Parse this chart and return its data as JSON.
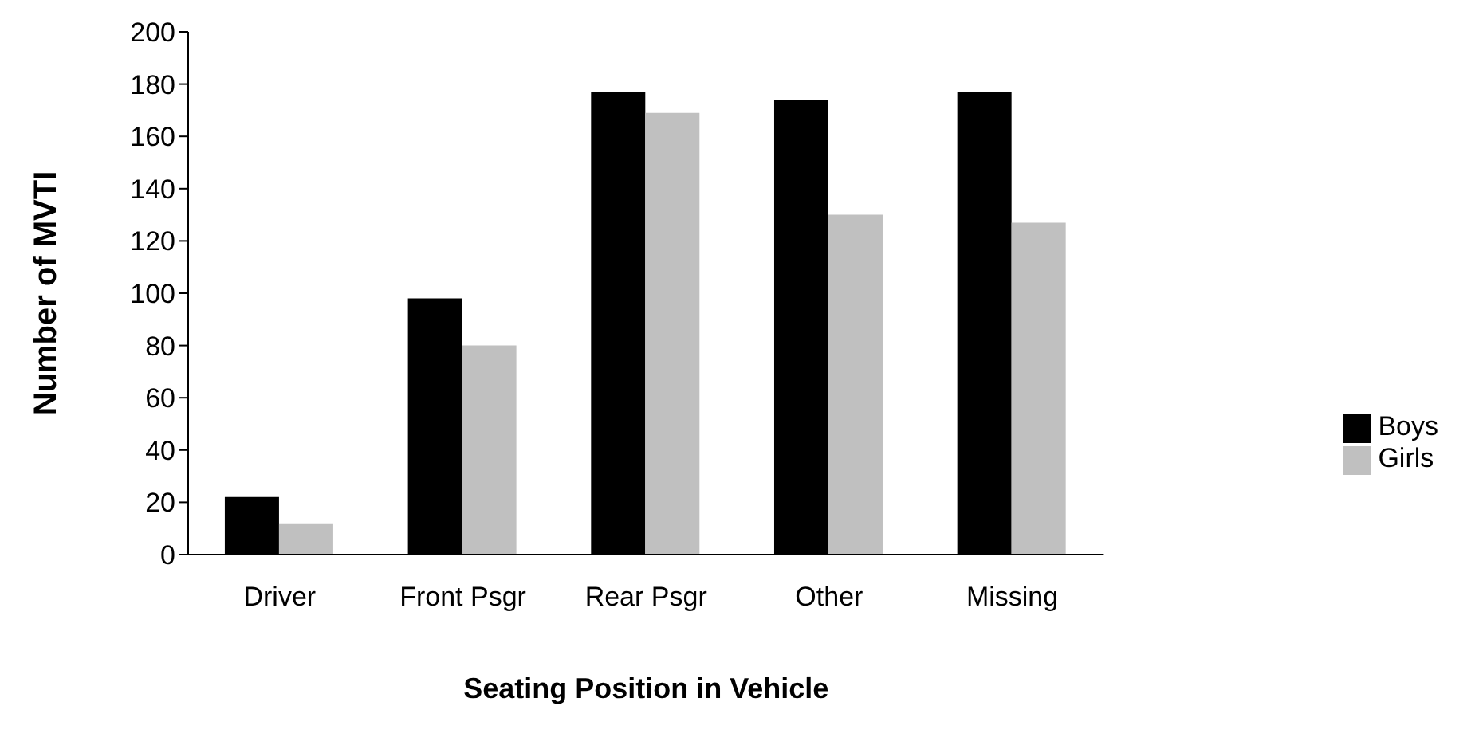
{
  "chart_data": {
    "type": "bar",
    "xlabel": "Seating Position in Vehicle",
    "ylabel": "Number of MVTI",
    "categories": [
      "Driver",
      "Front Psgr",
      "Rear Psgr",
      "Other",
      "Missing"
    ],
    "series": [
      {
        "name": "Boys",
        "color": "#000000",
        "values": [
          22,
          98,
          177,
          174,
          177
        ]
      },
      {
        "name": "Girls",
        "color": "#c0c0c0",
        "values": [
          12,
          80,
          169,
          130,
          127
        ]
      }
    ],
    "ylim": [
      0,
      200
    ],
    "yticks": [
      0,
      20,
      40,
      60,
      80,
      100,
      120,
      140,
      160,
      180,
      200
    ],
    "grid": false,
    "legend": "right"
  }
}
